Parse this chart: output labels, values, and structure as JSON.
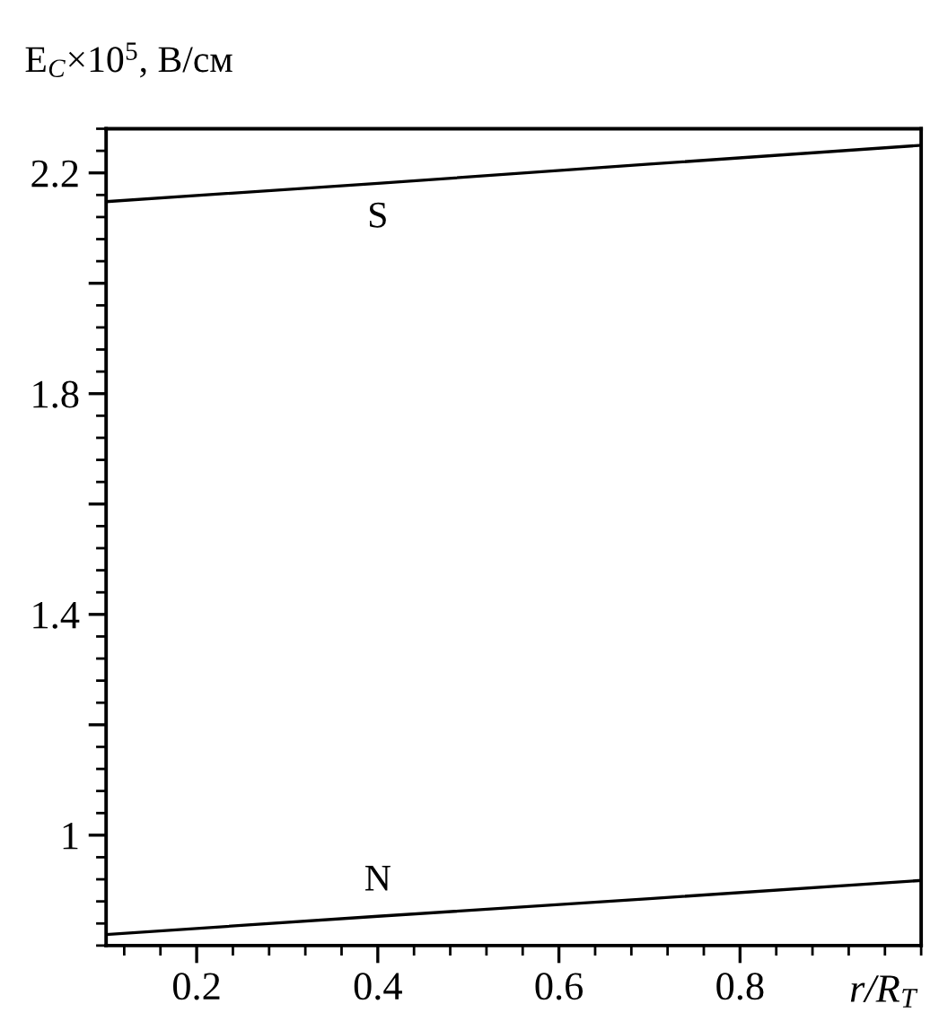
{
  "chart_data": {
    "type": "line",
    "ylabel": "E$_{C}$×10$^{5}$, В/см",
    "xlabel": "r/R$_{T}$",
    "x": [
      0.1,
      0.4,
      0.7,
      1.0
    ],
    "series": [
      {
        "name": "S",
        "color": "#000000",
        "values": [
          2.148,
          2.181,
          2.216,
          2.25
        ]
      },
      {
        "name": "N",
        "color": "#000000",
        "values": [
          0.82,
          0.853,
          0.885,
          0.918
        ]
      }
    ],
    "xlim": [
      0.1,
      1.0
    ],
    "xticks": [
      0.2,
      0.4,
      0.6,
      0.8
    ],
    "ylim": [
      0.8,
      2.28
    ],
    "yticks": [
      1,
      {
        "value": 1.2,
        "label": null
      },
      1.4,
      {
        "value": 1.6,
        "label": null
      },
      1.8,
      {
        "value": 2.0,
        "label": null
      },
      2.2
    ],
    "grid": false,
    "legend": false,
    "marker": "none",
    "line_style": "solid"
  }
}
